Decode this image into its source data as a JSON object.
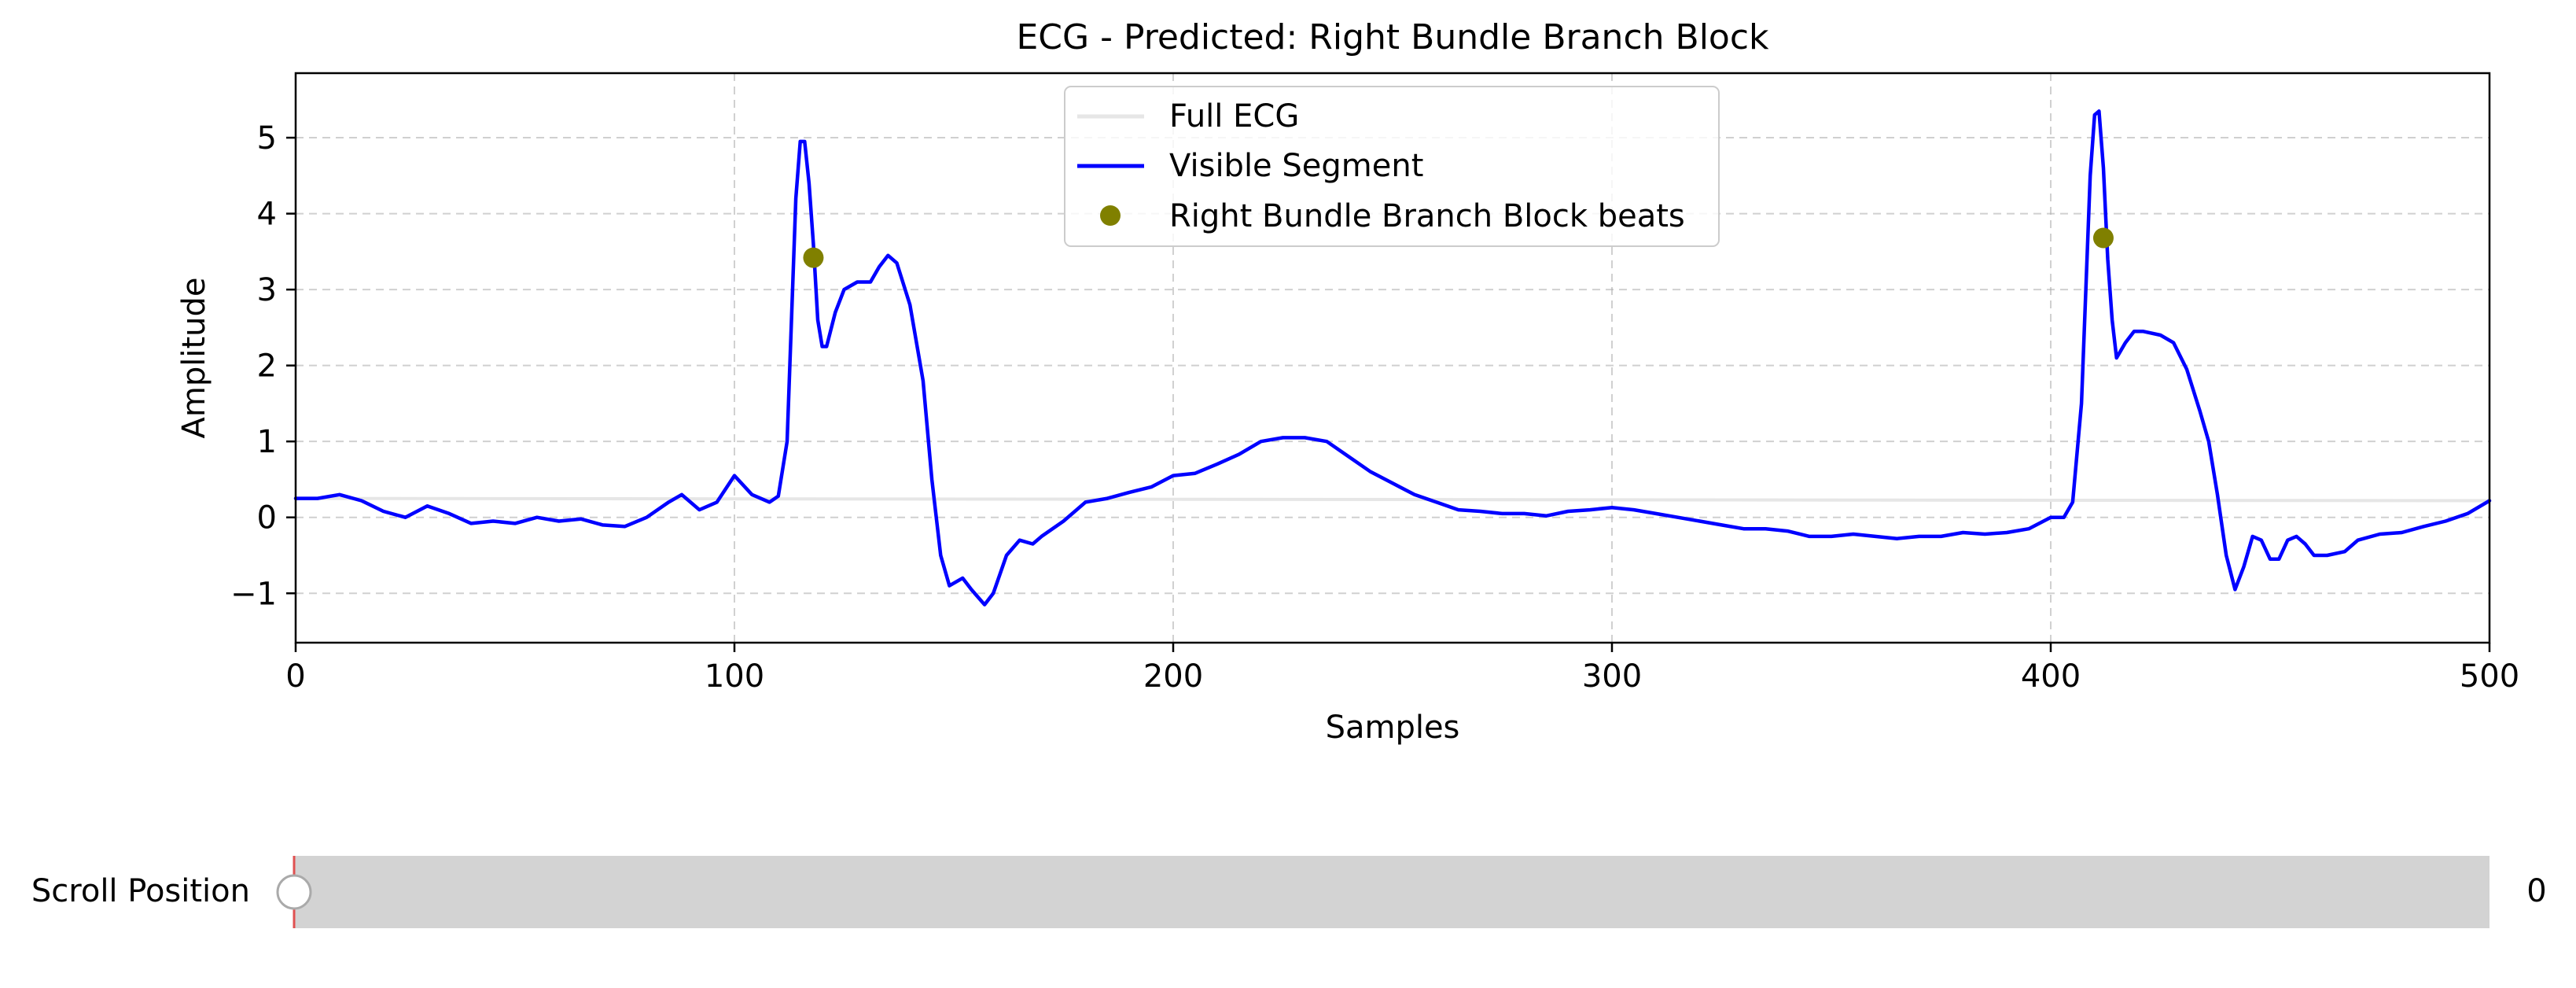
{
  "chart_data": {
    "type": "line",
    "title": "ECG - Predicted: Right Bundle Branch Block",
    "xlabel": "Samples",
    "ylabel": "Amplitude",
    "xlim": [
      0,
      500
    ],
    "ylim": [
      -1.65,
      5.85
    ],
    "xticks": [
      0,
      100,
      200,
      300,
      400,
      500
    ],
    "yticks": [
      -1,
      0,
      1,
      2,
      3,
      4,
      5
    ],
    "grid": true,
    "legend_position": "top-center",
    "legend": [
      "Full ECG",
      "Visible Segment",
      "Right Bundle Branch Block beats"
    ],
    "series": [
      {
        "name": "Full ECG",
        "color": "#e6e6e6",
        "points": [
          [
            0,
            0.25
          ],
          [
            500,
            0.22
          ]
        ]
      },
      {
        "name": "Visible Segment",
        "color": "#0000ff",
        "points": [
          [
            0,
            0.25
          ],
          [
            5,
            0.25
          ],
          [
            10,
            0.3
          ],
          [
            15,
            0.22
          ],
          [
            20,
            0.08
          ],
          [
            25,
            0.0
          ],
          [
            30,
            0.15
          ],
          [
            35,
            0.05
          ],
          [
            40,
            -0.08
          ],
          [
            45,
            -0.05
          ],
          [
            50,
            -0.08
          ],
          [
            55,
            0.0
          ],
          [
            60,
            -0.05
          ],
          [
            65,
            -0.02
          ],
          [
            70,
            -0.1
          ],
          [
            75,
            -0.12
          ],
          [
            80,
            0.0
          ],
          [
            85,
            0.2
          ],
          [
            88,
            0.3
          ],
          [
            92,
            0.1
          ],
          [
            96,
            0.2
          ],
          [
            100,
            0.55
          ],
          [
            104,
            0.3
          ],
          [
            108,
            0.2
          ],
          [
            110,
            0.28
          ],
          [
            112,
            1.0
          ],
          [
            114,
            4.2
          ],
          [
            115,
            4.95
          ],
          [
            116,
            4.95
          ],
          [
            117,
            4.4
          ],
          [
            118,
            3.6
          ],
          [
            119,
            2.6
          ],
          [
            120,
            2.25
          ],
          [
            121,
            2.25
          ],
          [
            123,
            2.7
          ],
          [
            125,
            3.0
          ],
          [
            128,
            3.1
          ],
          [
            131,
            3.1
          ],
          [
            133,
            3.3
          ],
          [
            135,
            3.45
          ],
          [
            137,
            3.35
          ],
          [
            140,
            2.8
          ],
          [
            143,
            1.8
          ],
          [
            145,
            0.5
          ],
          [
            147,
            -0.5
          ],
          [
            149,
            -0.9
          ],
          [
            152,
            -0.8
          ],
          [
            154,
            -0.95
          ],
          [
            157,
            -1.15
          ],
          [
            159,
            -1.0
          ],
          [
            162,
            -0.5
          ],
          [
            165,
            -0.3
          ],
          [
            168,
            -0.35
          ],
          [
            170,
            -0.25
          ],
          [
            175,
            -0.05
          ],
          [
            180,
            0.2
          ],
          [
            185,
            0.25
          ],
          [
            190,
            0.33
          ],
          [
            195,
            0.4
          ],
          [
            200,
            0.55
          ],
          [
            205,
            0.58
          ],
          [
            210,
            0.7
          ],
          [
            215,
            0.83
          ],
          [
            220,
            1.0
          ],
          [
            225,
            1.05
          ],
          [
            230,
            1.05
          ],
          [
            235,
            1.0
          ],
          [
            240,
            0.8
          ],
          [
            245,
            0.6
          ],
          [
            250,
            0.45
          ],
          [
            255,
            0.3
          ],
          [
            260,
            0.2
          ],
          [
            265,
            0.1
          ],
          [
            270,
            0.08
          ],
          [
            275,
            0.05
          ],
          [
            280,
            0.05
          ],
          [
            285,
            0.02
          ],
          [
            290,
            0.08
          ],
          [
            295,
            0.1
          ],
          [
            300,
            0.13
          ],
          [
            305,
            0.1
          ],
          [
            310,
            0.05
          ],
          [
            315,
            0.0
          ],
          [
            320,
            -0.05
          ],
          [
            325,
            -0.1
          ],
          [
            330,
            -0.15
          ],
          [
            335,
            -0.15
          ],
          [
            340,
            -0.18
          ],
          [
            345,
            -0.25
          ],
          [
            350,
            -0.25
          ],
          [
            355,
            -0.22
          ],
          [
            360,
            -0.25
          ],
          [
            365,
            -0.28
          ],
          [
            370,
            -0.25
          ],
          [
            375,
            -0.25
          ],
          [
            380,
            -0.2
          ],
          [
            385,
            -0.22
          ],
          [
            390,
            -0.2
          ],
          [
            395,
            -0.15
          ],
          [
            400,
            0.0
          ],
          [
            403,
            0.0
          ],
          [
            405,
            0.2
          ],
          [
            407,
            1.5
          ],
          [
            409,
            4.5
          ],
          [
            410,
            5.3
          ],
          [
            411,
            5.35
          ],
          [
            412,
            4.6
          ],
          [
            413,
            3.4
          ],
          [
            414,
            2.6
          ],
          [
            415,
            2.1
          ],
          [
            417,
            2.3
          ],
          [
            419,
            2.45
          ],
          [
            421,
            2.45
          ],
          [
            425,
            2.4
          ],
          [
            428,
            2.3
          ],
          [
            431,
            1.95
          ],
          [
            434,
            1.4
          ],
          [
            436,
            1.0
          ],
          [
            438,
            0.3
          ],
          [
            440,
            -0.5
          ],
          [
            442,
            -0.95
          ],
          [
            444,
            -0.65
          ],
          [
            446,
            -0.25
          ],
          [
            448,
            -0.3
          ],
          [
            450,
            -0.55
          ],
          [
            452,
            -0.55
          ],
          [
            454,
            -0.3
          ],
          [
            456,
            -0.25
          ],
          [
            458,
            -0.35
          ],
          [
            460,
            -0.5
          ],
          [
            463,
            -0.5
          ],
          [
            467,
            -0.45
          ],
          [
            470,
            -0.3
          ],
          [
            475,
            -0.22
          ],
          [
            480,
            -0.2
          ],
          [
            485,
            -0.12
          ],
          [
            490,
            -0.05
          ],
          [
            495,
            0.05
          ],
          [
            500,
            0.22
          ]
        ]
      }
    ],
    "markers": {
      "name": "Right Bundle Branch Block beats",
      "color": "#808000",
      "points": [
        [
          118,
          3.42
        ],
        [
          412,
          3.68
        ]
      ]
    }
  },
  "slider": {
    "label": "Scroll Position",
    "value": "0",
    "min": 0,
    "max": 1,
    "current": 0,
    "track_color": "#d3d3d3",
    "indicator_color": "#e05050"
  }
}
